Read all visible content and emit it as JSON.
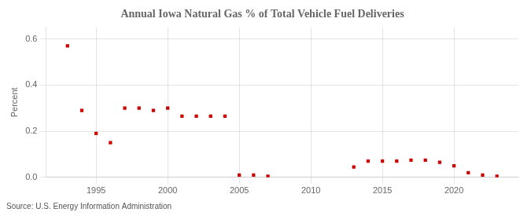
{
  "chart_data": {
    "type": "scatter",
    "title": "Annual Iowa Natural Gas % of Total Vehicle Fuel Deliveries",
    "ylabel": "Percent",
    "annotations": [
      "Source: U.S. Energy Information Administration"
    ],
    "x": [
      1993,
      1994,
      1995,
      1996,
      1997,
      1998,
      1999,
      2000,
      2001,
      2002,
      2003,
      2004,
      2005,
      2006,
      2007,
      2013,
      2014,
      2015,
      2016,
      2017,
      2018,
      2019,
      2020,
      2021,
      2022,
      2023
    ],
    "values": [
      0.57,
      0.29,
      0.19,
      0.15,
      0.3,
      0.3,
      0.29,
      0.3,
      0.265,
      0.265,
      0.265,
      0.265,
      0.01,
      0.01,
      0.005,
      0.045,
      0.07,
      0.07,
      0.07,
      0.075,
      0.075,
      0.065,
      0.05,
      0.02,
      0.01,
      0.005
    ],
    "color": "#cc0000",
    "marker": "square",
    "xlim": [
      1991.5,
      2024.5
    ],
    "xticks": [
      1995,
      2000,
      2005,
      2010,
      2015,
      2020
    ],
    "ylim": [
      0,
      0.65
    ],
    "yticks": [
      {
        "value": 0.0,
        "label": "0.0"
      },
      {
        "value": 0.2,
        "label": "0.2"
      },
      {
        "value": 0.4,
        "label": "0.4"
      },
      {
        "value": 0.6,
        "label": "0.6"
      }
    ],
    "grid": true
  }
}
